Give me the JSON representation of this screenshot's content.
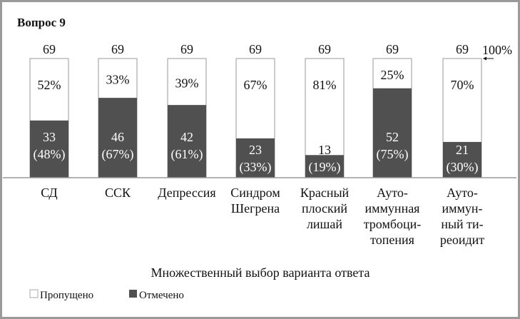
{
  "chart_data": {
    "type": "bar",
    "stacked": true,
    "title": "Вопрос 9",
    "xlabel": "Множественный выбор варианта ответа",
    "ylabel": "",
    "ylim": [
      0,
      100
    ],
    "reference_label": "100%",
    "categories": [
      [
        "СД"
      ],
      [
        "ССК"
      ],
      [
        "Депрессия"
      ],
      [
        "Синдром",
        "Шегрена"
      ],
      [
        "Красный",
        "плоский",
        "лишай"
      ],
      [
        "Ауто-",
        "иммунная",
        "тромбоци-",
        "топения"
      ],
      [
        "Ауто-",
        "иммун-",
        "ный ти-",
        "реоидит"
      ]
    ],
    "totals": [
      69,
      69,
      69,
      69,
      69,
      69,
      69
    ],
    "series": [
      {
        "name": "Отмечено",
        "color": "#505050",
        "counts": [
          33,
          46,
          42,
          23,
          13,
          52,
          21
        ],
        "percent": [
          48,
          67,
          61,
          33,
          19,
          75,
          30
        ]
      },
      {
        "name": "Пропущено",
        "color": "#ffffff",
        "percent": [
          52,
          33,
          39,
          67,
          81,
          25,
          70
        ]
      }
    ],
    "legend": {
      "placement": "bottom-left",
      "entries": [
        "Пропущено",
        "Отмечено"
      ]
    }
  }
}
